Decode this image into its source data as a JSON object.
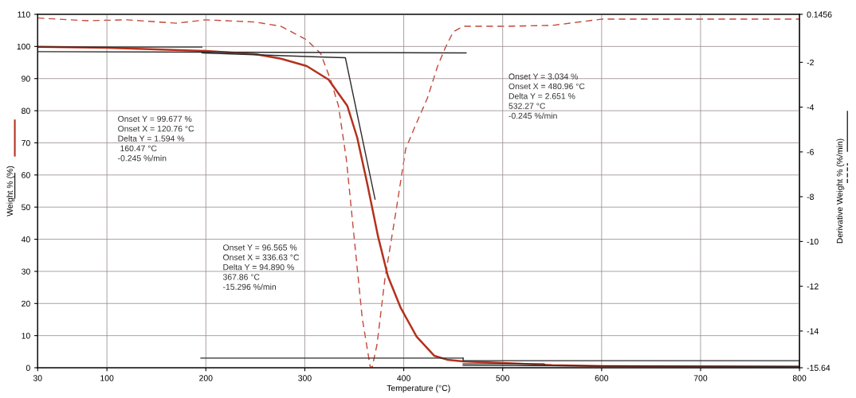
{
  "chart_data": {
    "type": "line",
    "xlabel": "Temperature (°C)",
    "ylabel": "Weight % (%)",
    "y2label": "Derivative Weight % (%/min)",
    "xlim": [
      30,
      800
    ],
    "xticks": [
      30,
      100,
      200,
      300,
      400,
      500,
      600,
      700,
      800
    ],
    "ylim": [
      0,
      110
    ],
    "yticks": [
      0,
      10,
      20,
      30,
      40,
      50,
      60,
      70,
      80,
      90,
      100,
      110
    ],
    "y2lim": [
      -15.64,
      0.1456
    ],
    "y2ticks": [
      0.1456,
      -2,
      -4,
      -6,
      -8,
      -10,
      -12,
      -14,
      -15.64
    ],
    "grid": true,
    "legend": false,
    "series": [
      {
        "color": "#b3321e",
        "line_style": "solid",
        "x": [
          30,
          100,
          200,
          250,
          276,
          302,
          324,
          343,
          353,
          363,
          374,
          384,
          397,
          413,
          431,
          444,
          460,
          500,
          550,
          600,
          700,
          800
        ],
        "values": [
          99.9,
          99.6,
          98.6,
          97.6,
          96.2,
          93.9,
          89.7,
          81.5,
          71.6,
          57.5,
          40.9,
          28.5,
          18.6,
          9.7,
          3.7,
          2.5,
          2.0,
          1.5,
          0.8,
          0.5,
          0.4,
          0.3
        ]
      },
      {
        "color": "#c4473a",
        "line_style": "dashed",
        "axis": "y2",
        "x": [
          30,
          80,
          120,
          170,
          200,
          250,
          276,
          302,
          316,
          326,
          334,
          342,
          350,
          358,
          366,
          368,
          373,
          381,
          392,
          402,
          412,
          424,
          434,
          442,
          450,
          460,
          500,
          550,
          600,
          700,
          800
        ],
        "values": [
          -0.02,
          -0.14,
          -0.1,
          -0.25,
          -0.1,
          -0.2,
          -0.39,
          -1.0,
          -1.6,
          -2.77,
          -3.94,
          -6.32,
          -9.88,
          -13.4,
          -15.57,
          -15.64,
          -14.6,
          -11.66,
          -8.7,
          -5.86,
          -4.8,
          -3.59,
          -2.2,
          -1.35,
          -0.64,
          -0.39,
          -0.39,
          -0.35,
          -0.07,
          -0.07,
          -0.07
        ]
      },
      {
        "color": "#2b2b2b",
        "line_style": "solid",
        "x": [
          30,
          196
        ],
        "values": [
          99.8,
          99.8
        ]
      },
      {
        "color": "#2b2b2b",
        "line_style": "solid",
        "x": [
          30,
          463
        ],
        "values": [
          98.4,
          98.0
        ]
      },
      {
        "color": "#2b2b2b",
        "line_style": "solid",
        "x": [
          196,
          320,
          341,
          371
        ],
        "values": [
          98.0,
          96.7,
          96.5,
          52.5
        ]
      },
      {
        "color": "#2b2b2b",
        "line_style": "solid",
        "x": [
          195,
          460
        ],
        "values": [
          3.0,
          3.0
        ]
      },
      {
        "color": "#2b2b2b",
        "line_style": "solid",
        "x": [
          460,
          460,
          800,
          800,
          460
        ],
        "values": [
          3.0,
          2.2,
          2.2,
          0.4,
          0.7
        ]
      },
      {
        "color": "#2b2b2b",
        "line_style": "solid",
        "x": [
          460,
          542,
          542
        ],
        "values": [
          1.2,
          1.2,
          0.7
        ]
      }
    ],
    "annotations": [
      "Onset Y = 99.677 %\nOnset X = 120.76 °C\nDelta Y = 1.594 %\n 160.47 °C\n-0.245 %/min",
      "Onset Y = 96.565 %\nOnset X = 336.63 °C\nDelta Y = 94.890 %\n367.86 °C\n-15.296 %/min",
      "Onset Y = 3.034 %\nOnset X = 480.96 °C\nDelta Y = 2.651 %\n532.27 °C\n-0.245 %/min"
    ]
  }
}
